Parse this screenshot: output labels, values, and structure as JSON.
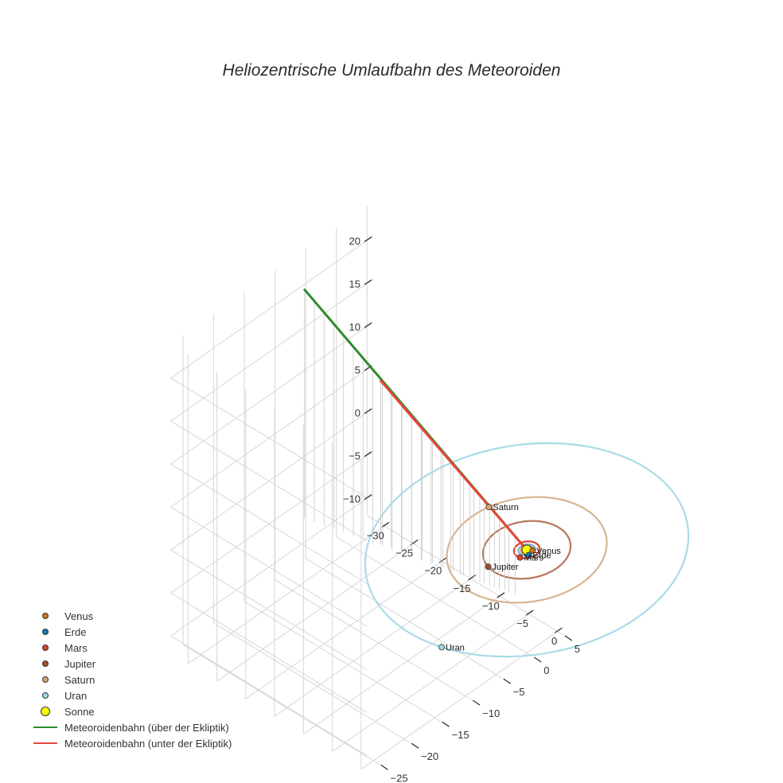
{
  "chart_data": {
    "type": "scatter3d",
    "title": "Heliozentrische Umlaufbahn des Meteoroiden",
    "axes": {
      "x": {
        "ticks": [
          0,
          -5,
          -10,
          -15,
          -20,
          -25,
          -30
        ],
        "tick_labels": [
          "0",
          "−5",
          "−10",
          "−15",
          "−20",
          "−25",
          "−30"
        ],
        "range": [
          -33,
          1
        ]
      },
      "y": {
        "ticks": [
          5,
          0,
          -5,
          -10,
          -15,
          -20,
          -25
        ],
        "tick_labels": [
          "5",
          "0",
          "−5",
          "−10",
          "−15",
          "−20",
          "−25"
        ],
        "range": [
          -27,
          6
        ]
      },
      "z": {
        "ticks": [
          20,
          15,
          10,
          5,
          0,
          -5,
          -10
        ],
        "tick_labels": [
          "20",
          "15",
          "10",
          "5",
          "0",
          "−5",
          "−10"
        ],
        "range": [
          -12,
          24
        ]
      }
    },
    "grid": true,
    "legend_position": "bottom-left",
    "planets": [
      {
        "name": "Venus",
        "color": "#c5781e",
        "orbit_radius": 0.72,
        "angle_deg": 30
      },
      {
        "name": "Erde",
        "color": "#1f77b4",
        "orbit_radius": 1.0,
        "angle_deg": 330
      },
      {
        "name": "Mars",
        "color": "#d8442a",
        "orbit_radius": 1.52,
        "angle_deg": 285
      },
      {
        "name": "Jupiter",
        "color": "#a0522d",
        "orbit_radius": 5.2,
        "angle_deg": 255
      },
      {
        "name": "Saturn",
        "color": "#d2a679",
        "orbit_radius": 9.5,
        "angle_deg": 165
      },
      {
        "name": "Uran",
        "color": "#9fd6e6",
        "orbit_radius": 19.2,
        "angle_deg": 285
      }
    ],
    "orbit_colors": [
      "#e8a060",
      "#7fb3d5",
      "#d8442a",
      "#b5775a",
      "#d8b48f",
      "#a9dbe8"
    ],
    "sun": {
      "name": "Sonne",
      "color": "#ffff00"
    },
    "series": [
      {
        "name": "Meteoroidenbahn (über der Ekliptik)",
        "color": "#2e8b2e",
        "start": [
          -30,
          -8,
          22
        ],
        "end": [
          0,
          0,
          0
        ]
      },
      {
        "name": "Meteoroidenbahn (unter der Ekliptik)",
        "color": "#e8453c",
        "start": [
          -20,
          -5,
          14
        ],
        "end": [
          0,
          0,
          0
        ]
      }
    ],
    "legend": [
      {
        "label": "Venus",
        "kind": "dot",
        "color": "#c5781e"
      },
      {
        "label": "Erde",
        "kind": "dot",
        "color": "#1f77b4"
      },
      {
        "label": "Mars",
        "kind": "dot",
        "color": "#d8442a"
      },
      {
        "label": "Jupiter",
        "kind": "dot",
        "color": "#a0522d"
      },
      {
        "label": "Saturn",
        "kind": "dot",
        "color": "#d2a679"
      },
      {
        "label": "Uran",
        "kind": "dot",
        "color": "#9fd6e6"
      },
      {
        "label": "Sonne",
        "kind": "bigdot",
        "color": "#ffff00"
      },
      {
        "label": "Meteoroidenbahn (über der Ekliptik)",
        "kind": "line",
        "color": "#2e8b2e"
      },
      {
        "label": "Meteoroidenbahn (unter der Ekliptik)",
        "kind": "line",
        "color": "#e8453c"
      }
    ]
  }
}
